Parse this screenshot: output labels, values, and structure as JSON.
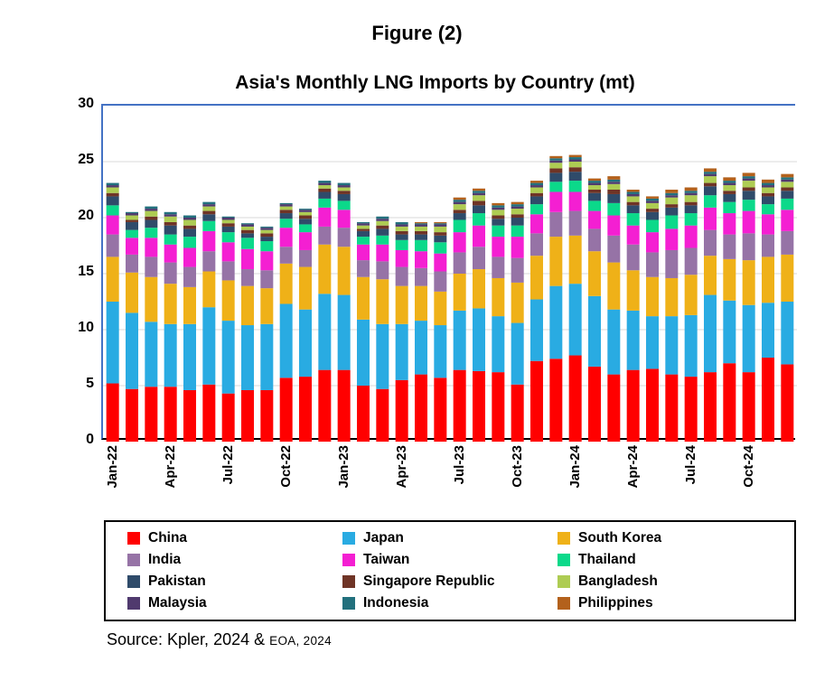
{
  "figure_label": "Figure (2)",
  "source": {
    "main": "Source: Kpler, 2024 &",
    "secondary": "EOA, 2024"
  },
  "colors": {
    "axis_blue": "#4472C4",
    "axis_black": "#000000",
    "gridline": "#D9D9D9"
  },
  "chart_data": {
    "type": "bar",
    "stacked": true,
    "title": "Asia's Monthly LNG Imports by Country (mt)",
    "xlabel": "",
    "ylabel": "",
    "ylim": [
      0,
      30
    ],
    "y_ticks": [
      0,
      5,
      10,
      15,
      20,
      25,
      30
    ],
    "x_tick_every": 3,
    "grid": true,
    "legend_position": "bottom",
    "categories": [
      "Jan-22",
      "Feb-22",
      "Mar-22",
      "Apr-22",
      "May-22",
      "Jun-22",
      "Jul-22",
      "Aug-22",
      "Sep-22",
      "Oct-22",
      "Nov-22",
      "Dec-22",
      "Jan-23",
      "Feb-23",
      "Mar-23",
      "Apr-23",
      "May-23",
      "Jun-23",
      "Jul-23",
      "Aug-23",
      "Sep-23",
      "Oct-23",
      "Nov-23",
      "Dec-23",
      "Jan-24",
      "Feb-24",
      "Mar-24",
      "Apr-24",
      "May-24",
      "Jun-24",
      "Jul-24",
      "Aug-24",
      "Sep-24",
      "Oct-24",
      "Nov-24",
      "Dec-24"
    ],
    "series": [
      {
        "name": "China",
        "color": "#FF0000",
        "values": [
          5.2,
          4.7,
          4.9,
          4.9,
          4.6,
          5.1,
          4.3,
          4.6,
          4.6,
          5.7,
          5.8,
          6.4,
          6.4,
          5.0,
          4.7,
          5.5,
          6.0,
          5.7,
          6.4,
          6.3,
          6.2,
          5.1,
          7.2,
          7.4,
          7.7,
          6.7,
          6.0,
          6.4,
          6.5,
          6.0,
          5.8,
          6.2,
          7.0,
          6.2,
          7.5,
          6.9
        ]
      },
      {
        "name": "Japan",
        "color": "#29ABE2",
        "values": [
          7.3,
          6.8,
          5.8,
          5.6,
          5.9,
          6.9,
          6.5,
          5.8,
          5.9,
          6.6,
          6.0,
          6.8,
          6.7,
          5.9,
          5.8,
          5.0,
          4.8,
          4.7,
          5.3,
          5.6,
          5.0,
          5.5,
          5.5,
          6.5,
          6.4,
          6.3,
          5.8,
          5.3,
          4.7,
          5.2,
          5.5,
          6.9,
          5.6,
          6.0,
          4.9,
          5.6
        ]
      },
      {
        "name": "South Korea",
        "color": "#EFB118",
        "values": [
          4.0,
          3.6,
          4.0,
          3.6,
          3.3,
          3.2,
          3.6,
          3.5,
          3.2,
          3.6,
          3.8,
          4.4,
          4.3,
          3.8,
          4.0,
          3.4,
          3.1,
          3.0,
          3.3,
          3.5,
          3.4,
          3.6,
          3.9,
          4.4,
          4.3,
          4.0,
          4.2,
          3.6,
          3.5,
          3.4,
          3.6,
          3.5,
          3.7,
          4.0,
          4.1,
          4.2
        ]
      },
      {
        "name": "India",
        "color": "#9673A6",
        "values": [
          2.0,
          1.6,
          1.8,
          1.9,
          1.8,
          1.8,
          1.7,
          1.5,
          1.6,
          1.5,
          1.5,
          1.6,
          1.7,
          1.5,
          1.6,
          1.7,
          1.6,
          1.8,
          1.9,
          2.0,
          1.9,
          2.2,
          2.0,
          2.2,
          2.2,
          2.0,
          2.4,
          2.3,
          2.2,
          2.5,
          2.4,
          2.3,
          2.2,
          2.4,
          2.0,
          2.1
        ]
      },
      {
        "name": "Taiwan",
        "color": "#F41FD2",
        "values": [
          1.7,
          1.5,
          1.7,
          1.6,
          1.7,
          1.8,
          1.7,
          1.8,
          1.7,
          1.7,
          1.6,
          1.7,
          1.6,
          1.4,
          1.5,
          1.5,
          1.5,
          1.6,
          1.8,
          1.9,
          1.8,
          1.9,
          1.7,
          1.8,
          1.7,
          1.6,
          1.8,
          1.7,
          1.8,
          1.9,
          2.0,
          2.0,
          1.9,
          2.0,
          1.8,
          1.9
        ]
      },
      {
        "name": "Thailand",
        "color": "#0BD98A",
        "values": [
          0.9,
          0.7,
          0.9,
          0.9,
          1.0,
          0.9,
          0.9,
          1.0,
          0.9,
          0.8,
          0.7,
          0.8,
          0.8,
          0.7,
          0.8,
          0.9,
          1.0,
          1.0,
          1.1,
          1.1,
          1.0,
          1.0,
          0.9,
          0.9,
          1.0,
          0.9,
          1.1,
          1.1,
          1.1,
          1.2,
          1.1,
          1.1,
          1.0,
          1.0,
          0.9,
          1.0
        ]
      },
      {
        "name": "Pakistan",
        "color": "#2F4B6A",
        "values": [
          0.8,
          0.7,
          0.7,
          0.8,
          0.7,
          0.6,
          0.5,
          0.4,
          0.4,
          0.5,
          0.5,
          0.6,
          0.6,
          0.5,
          0.6,
          0.5,
          0.5,
          0.6,
          0.6,
          0.7,
          0.6,
          0.7,
          0.7,
          0.8,
          0.8,
          0.7,
          0.8,
          0.7,
          0.7,
          0.7,
          0.7,
          0.8,
          0.7,
          0.8,
          0.7,
          0.7
        ]
      },
      {
        "name": "Singapore Republic",
        "color": "#6F3426",
        "values": [
          0.3,
          0.2,
          0.3,
          0.3,
          0.3,
          0.3,
          0.3,
          0.3,
          0.3,
          0.3,
          0.3,
          0.3,
          0.3,
          0.2,
          0.3,
          0.3,
          0.3,
          0.3,
          0.3,
          0.4,
          0.3,
          0.3,
          0.3,
          0.4,
          0.4,
          0.3,
          0.4,
          0.3,
          0.3,
          0.3,
          0.3,
          0.3,
          0.3,
          0.3,
          0.3,
          0.3
        ]
      },
      {
        "name": "Bangladesh",
        "color": "#AECC53",
        "values": [
          0.5,
          0.4,
          0.5,
          0.5,
          0.5,
          0.4,
          0.3,
          0.3,
          0.3,
          0.3,
          0.3,
          0.3,
          0.3,
          0.3,
          0.4,
          0.4,
          0.4,
          0.5,
          0.5,
          0.5,
          0.5,
          0.5,
          0.5,
          0.5,
          0.5,
          0.4,
          0.5,
          0.5,
          0.5,
          0.6,
          0.6,
          0.6,
          0.5,
          0.6,
          0.5,
          0.5
        ]
      },
      {
        "name": "Malaysia",
        "color": "#503A6E",
        "values": [
          0.2,
          0.2,
          0.2,
          0.2,
          0.2,
          0.2,
          0.2,
          0.2,
          0.2,
          0.2,
          0.2,
          0.2,
          0.2,
          0.2,
          0.2,
          0.2,
          0.2,
          0.2,
          0.2,
          0.2,
          0.2,
          0.2,
          0.2,
          0.2,
          0.2,
          0.2,
          0.2,
          0.2,
          0.2,
          0.2,
          0.2,
          0.2,
          0.2,
          0.2,
          0.2,
          0.2
        ]
      },
      {
        "name": "Indonesia",
        "color": "#22707D",
        "values": [
          0.2,
          0.1,
          0.2,
          0.2,
          0.2,
          0.2,
          0.1,
          0.1,
          0.1,
          0.1,
          0.1,
          0.2,
          0.2,
          0.1,
          0.2,
          0.2,
          0.1,
          0.1,
          0.2,
          0.2,
          0.2,
          0.2,
          0.2,
          0.2,
          0.2,
          0.2,
          0.2,
          0.2,
          0.2,
          0.2,
          0.2,
          0.2,
          0.2,
          0.2,
          0.2,
          0.2
        ]
      },
      {
        "name": "Philippines",
        "color": "#B3611C",
        "values": [
          0,
          0,
          0,
          0,
          0,
          0,
          0,
          0,
          0,
          0,
          0,
          0,
          0,
          0,
          0,
          0,
          0.1,
          0.1,
          0.2,
          0.2,
          0.2,
          0.2,
          0.2,
          0.2,
          0.2,
          0.2,
          0.3,
          0.2,
          0.2,
          0.3,
          0.3,
          0.3,
          0.3,
          0.3,
          0.3,
          0.3
        ]
      }
    ]
  }
}
